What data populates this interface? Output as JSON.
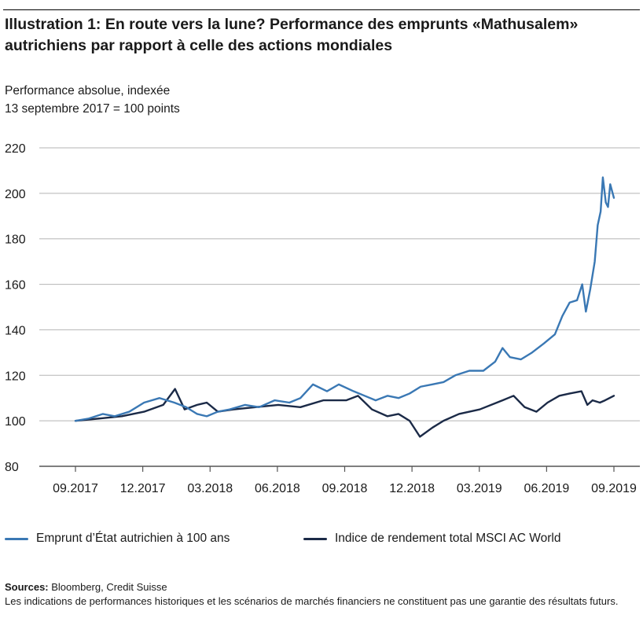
{
  "title": "Illustration 1: En route vers la lune? Performance des emprunts «Mathusalem» autrichiens par rapport à celle des actions mondiales",
  "subtitle_lines": [
    "Performance absolue, indexée",
    "13 septembre 2017 = 100 points"
  ],
  "colors": {
    "bond": "#3a78b4",
    "msci": "#1b2a47",
    "grid": "#b5b5b5",
    "axis": "#555555"
  },
  "chart_data": {
    "type": "line",
    "x_tick_labels": [
      "09.2017",
      "12.2017",
      "03.2018",
      "06.2018",
      "09.2018",
      "12.2018",
      "03.2019",
      "06.2019",
      "09.2019"
    ],
    "x_range": [
      "2017-09-13",
      "2019-09-13"
    ],
    "ylim": [
      80,
      220
    ],
    "y_ticks": [
      80,
      100,
      120,
      140,
      160,
      180,
      200,
      220
    ],
    "grid": true,
    "legend_position": "bottom",
    "series": [
      {
        "name": "Emprunt d’État autrichien à 100 ans",
        "color": "#3a78b4",
        "points": [
          [
            "2017-09-13",
            100
          ],
          [
            "2017-10-01",
            101
          ],
          [
            "2017-10-20",
            103
          ],
          [
            "2017-11-05",
            102
          ],
          [
            "2017-11-25",
            104
          ],
          [
            "2017-12-15",
            108
          ],
          [
            "2018-01-05",
            110
          ],
          [
            "2018-01-25",
            108
          ],
          [
            "2018-02-10",
            106
          ],
          [
            "2018-02-25",
            103
          ],
          [
            "2018-03-10",
            102
          ],
          [
            "2018-03-25",
            104
          ],
          [
            "2018-04-10",
            105
          ],
          [
            "2018-05-01",
            107
          ],
          [
            "2018-05-20",
            106
          ],
          [
            "2018-06-10",
            109
          ],
          [
            "2018-06-30",
            108
          ],
          [
            "2018-07-15",
            110
          ],
          [
            "2018-08-01",
            116
          ],
          [
            "2018-08-20",
            113
          ],
          [
            "2018-09-05",
            116
          ],
          [
            "2018-09-25",
            113
          ],
          [
            "2018-10-10",
            111
          ],
          [
            "2018-10-25",
            109
          ],
          [
            "2018-11-10",
            111
          ],
          [
            "2018-11-25",
            110
          ],
          [
            "2018-12-10",
            112
          ],
          [
            "2018-12-25",
            115
          ],
          [
            "2019-01-10",
            116
          ],
          [
            "2019-01-25",
            117
          ],
          [
            "2019-02-10",
            120
          ],
          [
            "2019-03-01",
            122
          ],
          [
            "2019-03-20",
            122
          ],
          [
            "2019-04-05",
            126
          ],
          [
            "2019-04-15",
            132
          ],
          [
            "2019-04-25",
            128
          ],
          [
            "2019-05-10",
            127
          ],
          [
            "2019-05-25",
            130
          ],
          [
            "2019-06-10",
            134
          ],
          [
            "2019-06-25",
            138
          ],
          [
            "2019-07-05",
            146
          ],
          [
            "2019-07-15",
            152
          ],
          [
            "2019-07-25",
            153
          ],
          [
            "2019-08-01",
            160
          ],
          [
            "2019-08-06",
            148
          ],
          [
            "2019-08-12",
            158
          ],
          [
            "2019-08-18",
            170
          ],
          [
            "2019-08-22",
            186
          ],
          [
            "2019-08-26",
            192
          ],
          [
            "2019-08-29",
            207
          ],
          [
            "2019-09-02",
            196
          ],
          [
            "2019-09-05",
            194
          ],
          [
            "2019-09-08",
            204
          ],
          [
            "2019-09-13",
            198
          ]
        ]
      },
      {
        "name": "Indice de rendement total MSCI AC World",
        "color": "#1b2a47",
        "points": [
          [
            "2017-09-13",
            100
          ],
          [
            "2017-10-15",
            101
          ],
          [
            "2017-11-15",
            102
          ],
          [
            "2017-12-15",
            104
          ],
          [
            "2018-01-10",
            107
          ],
          [
            "2018-01-26",
            114
          ],
          [
            "2018-02-08",
            105
          ],
          [
            "2018-02-25",
            107
          ],
          [
            "2018-03-10",
            108
          ],
          [
            "2018-03-25",
            104
          ],
          [
            "2018-04-15",
            105
          ],
          [
            "2018-05-15",
            106
          ],
          [
            "2018-06-15",
            107
          ],
          [
            "2018-07-15",
            106
          ],
          [
            "2018-08-15",
            109
          ],
          [
            "2018-09-15",
            109
          ],
          [
            "2018-10-01",
            111
          ],
          [
            "2018-10-20",
            105
          ],
          [
            "2018-11-10",
            102
          ],
          [
            "2018-11-25",
            103
          ],
          [
            "2018-12-10",
            100
          ],
          [
            "2018-12-24",
            93
          ],
          [
            "2019-01-10",
            97
          ],
          [
            "2019-01-25",
            100
          ],
          [
            "2019-02-15",
            103
          ],
          [
            "2019-03-15",
            105
          ],
          [
            "2019-04-15",
            109
          ],
          [
            "2019-04-30",
            111
          ],
          [
            "2019-05-15",
            106
          ],
          [
            "2019-05-31",
            104
          ],
          [
            "2019-06-15",
            108
          ],
          [
            "2019-07-01",
            111
          ],
          [
            "2019-07-15",
            112
          ],
          [
            "2019-07-31",
            113
          ],
          [
            "2019-08-08",
            107
          ],
          [
            "2019-08-15",
            109
          ],
          [
            "2019-08-25",
            108
          ],
          [
            "2019-09-01",
            109
          ],
          [
            "2019-09-13",
            111
          ]
        ]
      }
    ]
  },
  "legend": [
    {
      "label": "Emprunt d’État autrichien à 100 ans",
      "color": "#3a78b4"
    },
    {
      "label": "Indice de rendement total MSCI AC World",
      "color": "#1b2a47"
    }
  ],
  "footer": {
    "sources_label": "Sources:",
    "sources_text": " Bloomberg, Credit Suisse",
    "disclaimer": "Les indications de performances historiques et les scénarios de marchés financiers ne constituent pas une garantie des résultats futurs."
  }
}
